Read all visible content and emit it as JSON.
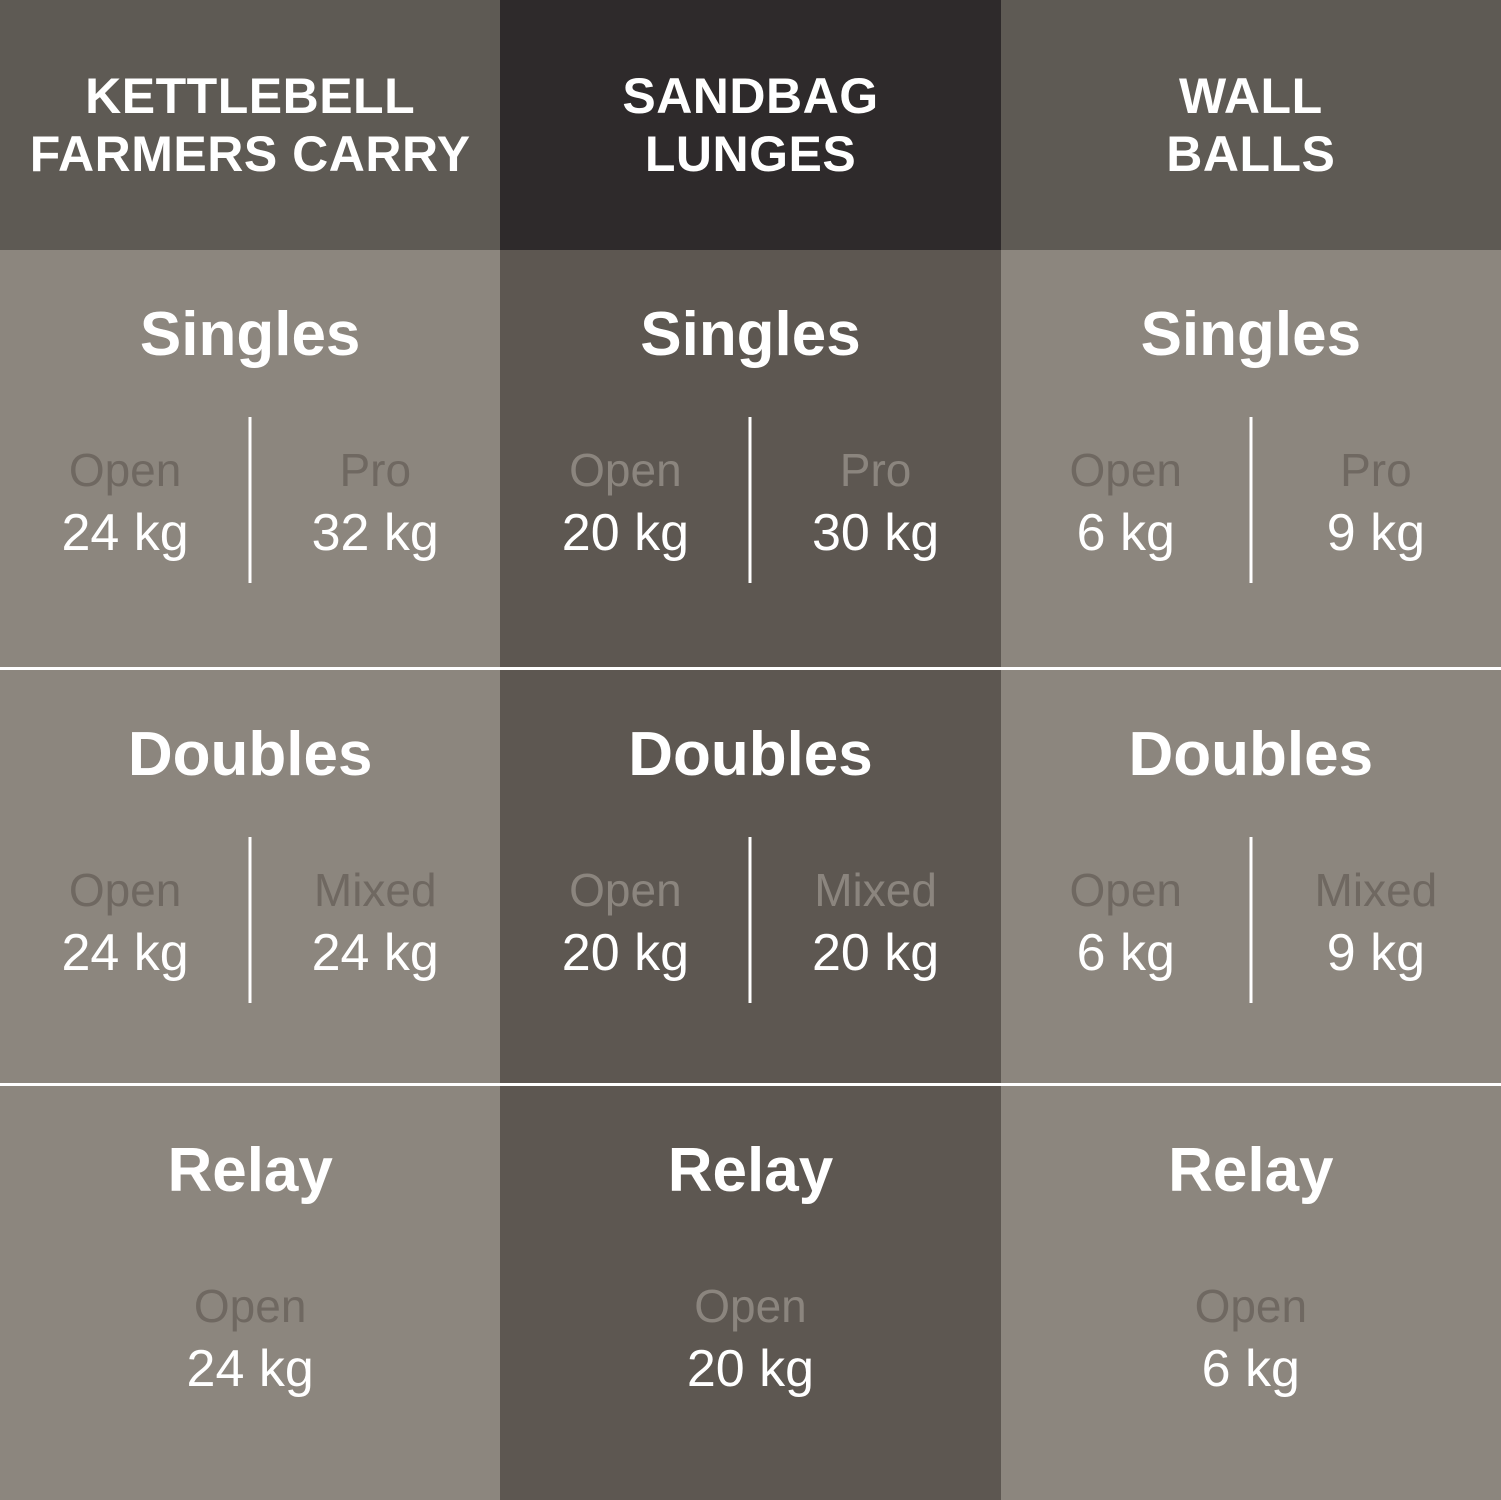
{
  "colors": {
    "header_light_bg": "#5e5a54",
    "header_dark_bg": "#2e2a2b",
    "body_light_bg": "#8c867e",
    "body_dark_bg": "#5d5751",
    "text_white": "#ffffff",
    "label_on_light": "#6f6861",
    "label_on_dark": "#8b857e",
    "divider": "#ffffff"
  },
  "grid": {
    "headers": [
      {
        "label": "KETTLEBELL\nFARMERS CARRY"
      },
      {
        "label": "SANDBAG\nLUNGES"
      },
      {
        "label": "WALL\nBALLS"
      }
    ],
    "cells": [
      {
        "title": "Singles",
        "left": {
          "label": "Open",
          "value": "24 kg"
        },
        "right": {
          "label": "Pro",
          "value": "32 kg"
        }
      },
      {
        "title": "Singles",
        "left": {
          "label": "Open",
          "value": "20 kg"
        },
        "right": {
          "label": "Pro",
          "value": "30 kg"
        }
      },
      {
        "title": "Singles",
        "left": {
          "label": "Open",
          "value": "6 kg"
        },
        "right": {
          "label": "Pro",
          "value": "9 kg"
        }
      },
      {
        "title": "Doubles",
        "left": {
          "label": "Open",
          "value": "24 kg"
        },
        "right": {
          "label": "Mixed",
          "value": "24 kg"
        }
      },
      {
        "title": "Doubles",
        "left": {
          "label": "Open",
          "value": "20 kg"
        },
        "right": {
          "label": "Mixed",
          "value": "20 kg"
        }
      },
      {
        "title": "Doubles",
        "left": {
          "label": "Open",
          "value": "6 kg"
        },
        "right": {
          "label": "Mixed",
          "value": "9 kg"
        }
      },
      {
        "title": "Relay",
        "left": {
          "label": "Open",
          "value": "24 kg"
        }
      },
      {
        "title": "Relay",
        "left": {
          "label": "Open",
          "value": "20 kg"
        }
      },
      {
        "title": "Relay",
        "left": {
          "label": "Open",
          "value": "6 kg"
        }
      }
    ]
  },
  "chart_data": {
    "type": "table",
    "columns": [
      "KETTLEBELL FARMERS CARRY",
      "SANDBAG LUNGES",
      "WALL BALLS"
    ],
    "row_groups": [
      "Singles",
      "Doubles",
      "Relay"
    ],
    "data": [
      {
        "exercise": "KETTLEBELL FARMERS CARRY",
        "singles": {
          "Open": "24 kg",
          "Pro": "32 kg"
        },
        "doubles": {
          "Open": "24 kg",
          "Mixed": "24 kg"
        },
        "relay": {
          "Open": "24 kg"
        }
      },
      {
        "exercise": "SANDBAG LUNGES",
        "singles": {
          "Open": "20 kg",
          "Pro": "30 kg"
        },
        "doubles": {
          "Open": "20 kg",
          "Mixed": "20 kg"
        },
        "relay": {
          "Open": "20 kg"
        }
      },
      {
        "exercise": "WALL BALLS",
        "singles": {
          "Open": "6 kg",
          "Pro": "9 kg"
        },
        "doubles": {
          "Open": "6 kg",
          "Mixed": "9 kg"
        },
        "relay": {
          "Open": "6 kg"
        }
      }
    ]
  }
}
